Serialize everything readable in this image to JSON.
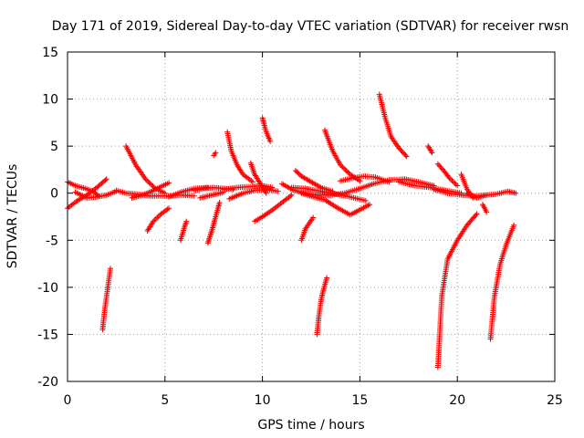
{
  "chart_data": {
    "type": "scatter",
    "title": "Day 171 of 2019, Sidereal Day-to-day VTEC variation (SDTVAR) for receiver rwsn",
    "xlabel": "GPS time / hours",
    "ylabel": "SDTVAR / TECUs",
    "xlim": [
      0,
      25
    ],
    "ylim": [
      -20,
      15
    ],
    "xticks": [
      0,
      5,
      10,
      15,
      20,
      25
    ],
    "yticks": [
      -20,
      -15,
      -10,
      -5,
      0,
      5,
      10,
      15
    ],
    "grid": true,
    "marker": "+",
    "color": "#ff0000",
    "arcs": [
      {
        "x": [
          0.0,
          0.5,
          1.0,
          1.5,
          2.0
        ],
        "y": [
          -1.6,
          -0.8,
          -0.2,
          0.6,
          1.5
        ]
      },
      {
        "x": [
          0.0,
          0.4,
          0.9,
          1.3,
          1.6
        ],
        "y": [
          1.2,
          0.8,
          0.5,
          0.2,
          -0.3
        ]
      },
      {
        "x": [
          0.4,
          1.0,
          1.5,
          2.0,
          2.5
        ],
        "y": [
          0.1,
          -0.5,
          -0.4,
          -0.2,
          0.2
        ]
      },
      {
        "x": [
          1.8,
          1.9,
          2.0,
          2.1,
          2.2
        ],
        "y": [
          -14.5,
          -12.5,
          -11.0,
          -9.5,
          -8.0
        ]
      },
      {
        "x": [
          3.0,
          3.5,
          4.0,
          4.5,
          5.0
        ],
        "y": [
          5.0,
          3.0,
          1.5,
          0.5,
          0.0
        ]
      },
      {
        "x": [
          2.5,
          3.0,
          3.6,
          4.2,
          5.0,
          5.8,
          6.5
        ],
        "y": [
          0.3,
          0.0,
          -0.1,
          -0.3,
          -0.3,
          -0.2,
          -0.3
        ]
      },
      {
        "x": [
          3.3,
          3.7,
          4.2,
          4.7,
          5.2
        ],
        "y": [
          -0.5,
          -0.3,
          0.1,
          0.6,
          1.1
        ]
      },
      {
        "x": [
          4.1,
          4.4,
          4.8,
          5.2
        ],
        "y": [
          -4.0,
          -3.0,
          -2.2,
          -1.6
        ]
      },
      {
        "x": [
          5.2,
          5.8,
          6.5,
          7.2
        ],
        "y": [
          -0.4,
          0.1,
          0.5,
          0.6
        ]
      },
      {
        "x": [
          5.8,
          5.9,
          6.0,
          6.1
        ],
        "y": [
          -5.0,
          -4.3,
          -3.6,
          -3.0
        ]
      },
      {
        "x": [
          6.5,
          7.0,
          7.5,
          8.0,
          8.5
        ],
        "y": [
          0.3,
          0.5,
          0.6,
          0.5,
          0.4
        ]
      },
      {
        "x": [
          6.8,
          7.2,
          7.6,
          8.0
        ],
        "y": [
          -0.5,
          -0.3,
          -0.1,
          0.1
        ]
      },
      {
        "x": [
          7.2,
          7.4,
          7.6,
          7.8
        ],
        "y": [
          -5.3,
          -4.0,
          -2.5,
          -1.0
        ]
      },
      {
        "x": [
          7.5,
          7.6
        ],
        "y": [
          4.0,
          4.3
        ]
      },
      {
        "x": [
          8.2,
          8.4,
          8.7,
          9.0,
          9.5
        ],
        "y": [
          6.5,
          4.5,
          3.0,
          2.0,
          1.2
        ]
      },
      {
        "x": [
          8.0,
          8.7,
          9.4,
          10.0,
          10.5
        ],
        "y": [
          0.4,
          0.6,
          0.7,
          0.8,
          0.6
        ]
      },
      {
        "x": [
          8.3,
          9.0,
          9.6,
          10.2,
          10.8
        ],
        "y": [
          -0.6,
          0.0,
          0.3,
          0.4,
          0.2
        ]
      },
      {
        "x": [
          9.4,
          9.6,
          9.9,
          10.2
        ],
        "y": [
          3.2,
          2.0,
          1.0,
          0.0
        ]
      },
      {
        "x": [
          10.0,
          10.1,
          10.2,
          10.4
        ],
        "y": [
          8.0,
          7.2,
          6.5,
          5.5
        ]
      },
      {
        "x": [
          9.6,
          10.0,
          10.5,
          11.0,
          11.5
        ],
        "y": [
          -3.0,
          -2.5,
          -1.8,
          -1.0,
          -0.2
        ]
      },
      {
        "x": [
          11.0,
          11.6,
          12.2,
          12.8,
          13.5,
          14.2,
          15.0
        ],
        "y": [
          1.0,
          0.3,
          0.0,
          -0.2,
          -0.2,
          0.0,
          0.5
        ]
      },
      {
        "x": [
          11.5,
          12.2,
          13.0,
          13.8,
          14.5,
          15.3
        ],
        "y": [
          0.6,
          0.5,
          0.2,
          -0.1,
          -0.4,
          -0.8
        ]
      },
      {
        "x": [
          11.7,
          12.0,
          12.5,
          13.0,
          13.6
        ],
        "y": [
          2.4,
          1.8,
          1.2,
          0.6,
          0.2
        ]
      },
      {
        "x": [
          12.0,
          12.6,
          13.2,
          13.8,
          14.5,
          15.5
        ],
        "y": [
          0.0,
          -0.4,
          -0.7,
          -1.5,
          -2.3,
          -1.2
        ]
      },
      {
        "x": [
          12.0,
          12.2,
          12.4,
          12.6
        ],
        "y": [
          -5.0,
          -3.8,
          -3.2,
          -2.6
        ]
      },
      {
        "x": [
          12.8,
          12.9,
          13.0,
          13.1,
          13.3
        ],
        "y": [
          -15.0,
          -13.0,
          -11.5,
          -10.5,
          -9.0
        ]
      },
      {
        "x": [
          13.2,
          13.6,
          14.0,
          14.5,
          15.0
        ],
        "y": [
          6.7,
          4.5,
          3.0,
          2.0,
          1.3
        ]
      },
      {
        "x": [
          14.0,
          14.6,
          15.2,
          15.8,
          16.5
        ],
        "y": [
          1.3,
          1.6,
          1.8,
          1.7,
          1.2
        ]
      },
      {
        "x": [
          15.0,
          15.7,
          16.5,
          17.3,
          18.0,
          18.8
        ],
        "y": [
          0.5,
          1.0,
          1.4,
          1.5,
          1.2,
          0.8
        ]
      },
      {
        "x": [
          16.0,
          16.3,
          16.6,
          17.0,
          17.4
        ],
        "y": [
          10.5,
          8.0,
          6.0,
          4.8,
          3.9
        ]
      },
      {
        "x": [
          17.0,
          17.8,
          18.6,
          19.4,
          20.2
        ],
        "y": [
          1.2,
          0.8,
          0.6,
          0.3,
          0.0
        ]
      },
      {
        "x": [
          18.5,
          18.7
        ],
        "y": [
          5.0,
          4.3
        ]
      },
      {
        "x": [
          19.0,
          19.3,
          19.6,
          20.0
        ],
        "y": [
          3.1,
          2.4,
          1.6,
          0.8
        ]
      },
      {
        "x": [
          18.8,
          19.5,
          20.2,
          20.9,
          21.5
        ],
        "y": [
          0.4,
          0.0,
          -0.2,
          -0.3,
          -0.2
        ]
      },
      {
        "x": [
          19.0,
          19.2,
          19.5,
          20.0,
          20.5,
          21.0
        ],
        "y": [
          -18.5,
          -11.0,
          -7.0,
          -5.0,
          -3.4,
          -2.2
        ]
      },
      {
        "x": [
          20.2,
          20.5,
          20.8
        ],
        "y": [
          2.0,
          0.4,
          -0.5
        ]
      },
      {
        "x": [
          20.5,
          21.0,
          21.5,
          22.0,
          22.6,
          23.0
        ],
        "y": [
          0.0,
          -0.5,
          -0.2,
          -0.1,
          0.2,
          0.0
        ]
      },
      {
        "x": [
          21.3,
          21.5
        ],
        "y": [
          -1.2,
          -2.0
        ]
      },
      {
        "x": [
          21.7,
          21.9,
          22.2,
          22.5,
          22.9
        ],
        "y": [
          -15.5,
          -11.0,
          -7.5,
          -5.5,
          -3.4
        ]
      }
    ]
  }
}
